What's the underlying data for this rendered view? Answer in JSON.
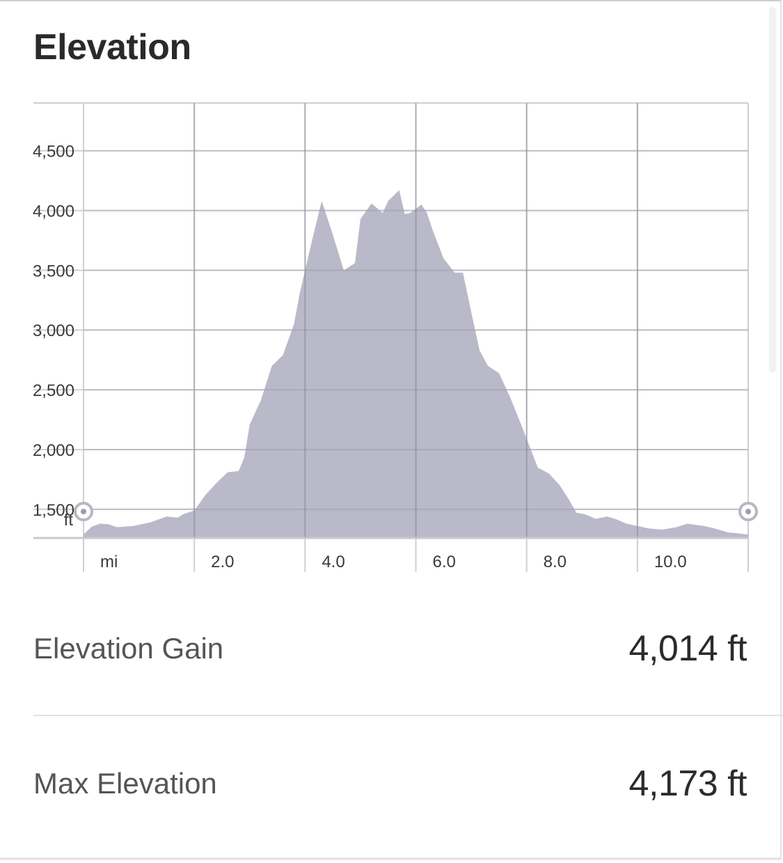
{
  "title": "Elevation",
  "chart_data": {
    "type": "area",
    "x_unit": "mi",
    "y_unit": "ft",
    "x_ticks": [
      "2.0",
      "4.0",
      "6.0",
      "8.0",
      "10.0"
    ],
    "y_ticks": [
      "1,500",
      "2,000",
      "2,500",
      "3,000",
      "3,500",
      "4,000",
      "4,500"
    ],
    "xlim": [
      0,
      12
    ],
    "ylim": [
      1260,
      4900
    ],
    "grid": true,
    "fill_color": "#b9b9c9",
    "x": [
      0,
      0.15,
      0.3,
      0.45,
      0.6,
      0.9,
      1.2,
      1.5,
      1.7,
      1.8,
      2.0,
      2.2,
      2.4,
      2.6,
      2.8,
      2.9,
      3.0,
      3.2,
      3.4,
      3.6,
      3.8,
      3.9,
      4.1,
      4.3,
      4.5,
      4.7,
      4.9,
      5.0,
      5.2,
      5.4,
      5.5,
      5.7,
      5.8,
      5.9,
      6.1,
      6.2,
      6.3,
      6.5,
      6.7,
      6.85,
      7.0,
      7.15,
      7.3,
      7.5,
      7.7,
      7.9,
      8.2,
      8.4,
      8.6,
      8.75,
      8.9,
      9.05,
      9.25,
      9.45,
      9.6,
      9.8,
      10.0,
      10.2,
      10.45,
      10.7,
      10.9,
      11.05,
      11.2,
      11.35,
      11.5,
      11.65,
      11.8,
      11.95,
      12.0
    ],
    "elevation": [
      1290,
      1355,
      1380,
      1375,
      1350,
      1360,
      1390,
      1440,
      1430,
      1460,
      1490,
      1620,
      1720,
      1810,
      1820,
      1930,
      2210,
      2410,
      2700,
      2790,
      3050,
      3300,
      3700,
      4080,
      3800,
      3500,
      3560,
      3930,
      4060,
      3980,
      4080,
      4170,
      3970,
      3980,
      4050,
      3980,
      3840,
      3600,
      3480,
      3480,
      3150,
      2830,
      2700,
      2640,
      2440,
      2210,
      1850,
      1800,
      1700,
      1590,
      1470,
      1460,
      1420,
      1440,
      1420,
      1380,
      1360,
      1340,
      1330,
      1350,
      1380,
      1370,
      1360,
      1345,
      1325,
      1305,
      1300,
      1290,
      1290
    ]
  },
  "stats": {
    "gain_label": "Elevation Gain",
    "gain_value": "4,014 ft",
    "max_label": "Max Elevation",
    "max_value": "4,173 ft"
  },
  "handles": {
    "start_icon": "range-handle-icon",
    "end_icon": "range-handle-icon"
  }
}
